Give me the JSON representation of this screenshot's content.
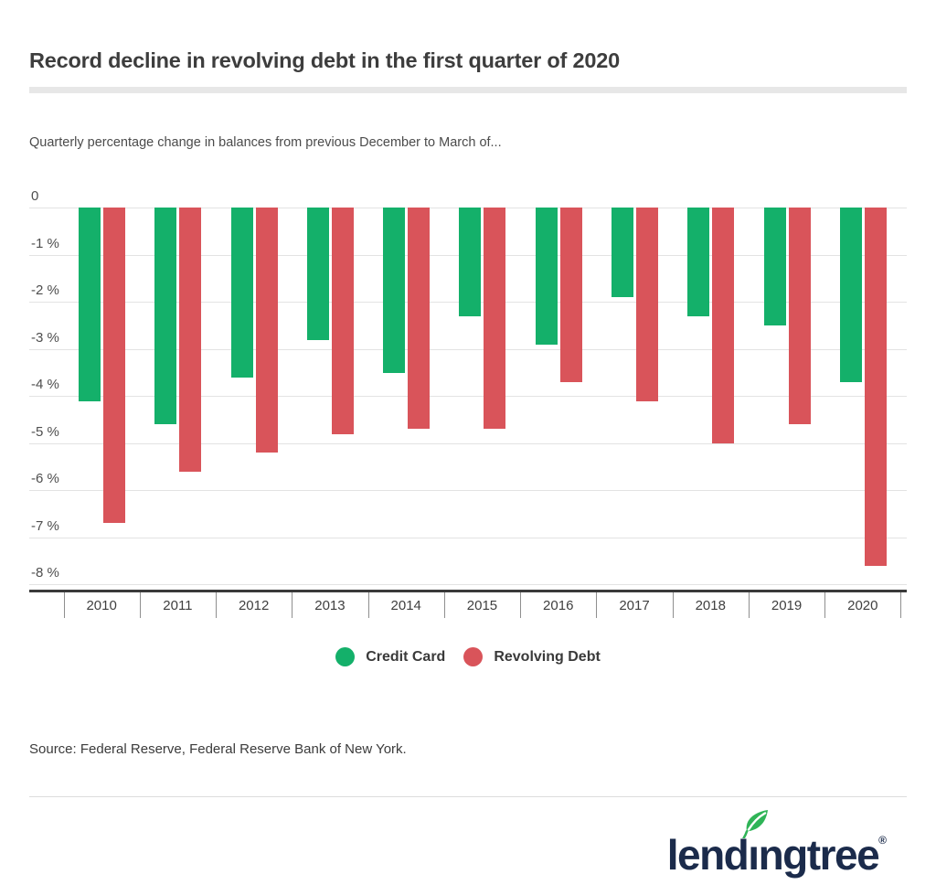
{
  "header": {
    "title": "Record decline in revolving debt in the first quarter of 2020",
    "subtitle": "Quarterly percentage change in balances from previous December to March of..."
  },
  "chart_data": {
    "type": "bar",
    "categories": [
      "2010",
      "2011",
      "2012",
      "2013",
      "2014",
      "2015",
      "2016",
      "2017",
      "2018",
      "2019",
      "2020"
    ],
    "series": [
      {
        "name": "Credit Card",
        "color": "#14B06A",
        "values": [
          -4.1,
          -4.6,
          -3.6,
          -2.8,
          -3.5,
          -2.3,
          -2.9,
          -1.9,
          -2.3,
          -2.5,
          -3.7
        ]
      },
      {
        "name": "Revolving Debt",
        "color": "#D9545A",
        "values": [
          -6.7,
          -5.6,
          -5.2,
          -4.8,
          -4.7,
          -4.7,
          -3.7,
          -4.1,
          -5.0,
          -4.6,
          -7.6
        ]
      }
    ],
    "title": "Record decline in revolving debt in the first quarter of 2020",
    "xlabel": "",
    "ylabel": "",
    "ylim": [
      -8,
      0
    ],
    "y_tick_labels": [
      "0",
      "-1 %",
      "-2 %",
      "-3 %",
      "-4 %",
      "-5 %",
      "-6 %",
      "-7 %",
      "-8 %"
    ],
    "grid": true,
    "legend_position": "bottom"
  },
  "footer": {
    "source": "Source: Federal Reserve, Federal Reserve Bank of New York."
  },
  "brand": {
    "name": "lendingtree",
    "text_before_leaf": "lend",
    "leaf_letter": "ı",
    "text_after_leaf": "ngtree",
    "registered_mark": "®",
    "logo_color": "#1B2B4B",
    "leaf_color": "#2FB457"
  },
  "colors": {
    "credit_card": "#14B06A",
    "revolving_debt": "#D9545A",
    "title_text": "#3D3D3D",
    "grid_line": "#E3E3E3",
    "axis_line": "#3A3A3A",
    "divider": "#E7E7E7"
  }
}
